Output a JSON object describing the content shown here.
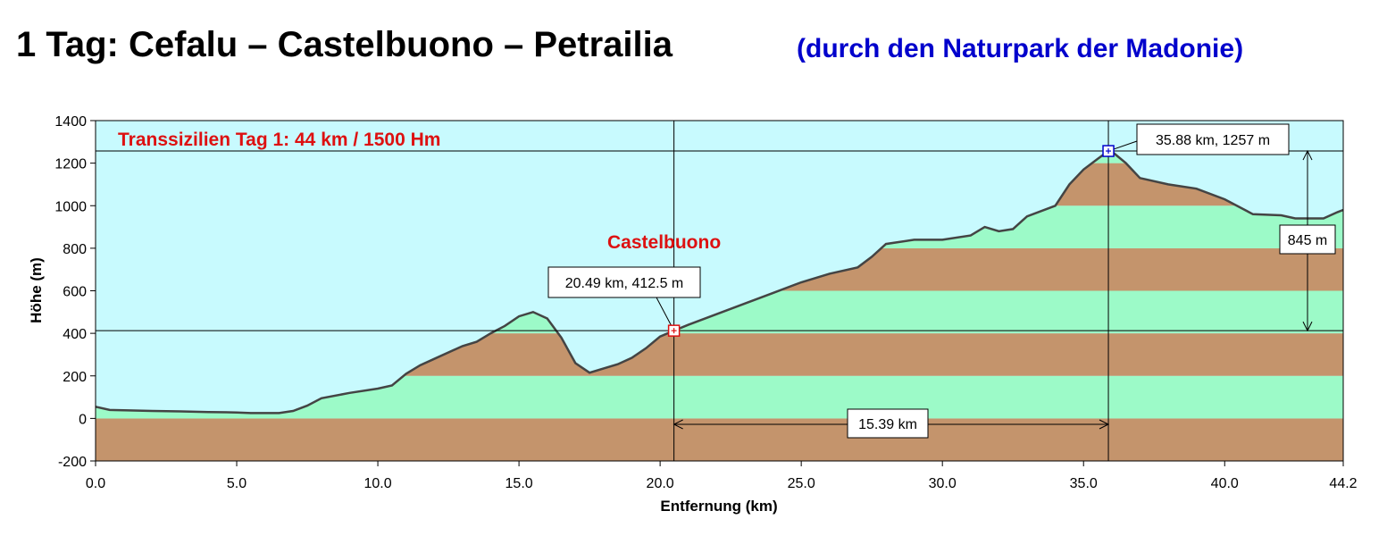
{
  "header": {
    "title": "1 Tag: Cefalu – Castelbuono – Petrailia",
    "subtitle": "(durch den Naturpark der Madonie)"
  },
  "colors": {
    "sky": "#c8fafe",
    "band_green": "#9cfac8",
    "band_brown": "#c4946c",
    "profile_line": "#444444",
    "annotation_red": "#dd1111",
    "marker_blue": "#0000cc"
  },
  "chart_data": {
    "type": "area",
    "title": "Transsizilien Tag 1: 44 km / 1500 Hm",
    "xlabel": "Entfernung  (km)",
    "ylabel": "Höhe (m)",
    "xlim": [
      0,
      44.2
    ],
    "ylim": [
      -200,
      1400
    ],
    "x_ticks": [
      "0.0",
      "5.0",
      "10.0",
      "15.0",
      "20.0",
      "25.0",
      "30.0",
      "35.0",
      "40.0",
      "44.2"
    ],
    "y_ticks": [
      "-200",
      "0",
      "200",
      "400",
      "600",
      "800",
      "1000",
      "1200",
      "1400"
    ],
    "grid": false,
    "band_step_m": 200,
    "series": [
      {
        "x": [
          0,
          0.5,
          1,
          2,
          3,
          4,
          5,
          5.5,
          6,
          6.5,
          7,
          7.5,
          8,
          9,
          10,
          10.5,
          11,
          11.5,
          12,
          13,
          13.5,
          14,
          14.5,
          15,
          15.5,
          16,
          16.5,
          17,
          17.5,
          18,
          18.5,
          19,
          19.5,
          20,
          20.49,
          21,
          22,
          23,
          24,
          25,
          26,
          27,
          27.5,
          28,
          29,
          30,
          31,
          31.5,
          32,
          32.5,
          33,
          34,
          34.5,
          35,
          35.5,
          35.88,
          36,
          36.5,
          37,
          38,
          39,
          40,
          41,
          42,
          42.5,
          43,
          43.5,
          44,
          44.2
        ],
        "y": [
          55,
          40,
          38,
          35,
          33,
          30,
          28,
          25,
          25,
          25,
          35,
          60,
          95,
          120,
          140,
          155,
          210,
          250,
          280,
          340,
          360,
          400,
          435,
          480,
          500,
          470,
          380,
          260,
          215,
          235,
          255,
          285,
          330,
          385,
          412.5,
          440,
          490,
          540,
          590,
          640,
          680,
          710,
          760,
          820,
          840,
          840,
          860,
          900,
          880,
          890,
          950,
          1000,
          1100,
          1170,
          1220,
          1257,
          1255,
          1200,
          1130,
          1100,
          1080,
          1030,
          960,
          955,
          940,
          940,
          940,
          970,
          980
        ]
      }
    ],
    "annotations": [
      {
        "label": "Castelbuono",
        "x": 20.3,
        "y": 820
      },
      {
        "label": "20.49 km, 412.5 m",
        "x": 20.49,
        "y": 412.5
      },
      {
        "label": "35.88 km, 1257 m",
        "x": 35.88,
        "y": 1257
      },
      {
        "label": "845 m"
      },
      {
        "label": "15.39 km"
      }
    ],
    "markers": [
      {
        "x": 20.49,
        "y": 412.5,
        "color": "red"
      },
      {
        "x": 35.88,
        "y": 1257,
        "color": "blue"
      }
    ]
  }
}
